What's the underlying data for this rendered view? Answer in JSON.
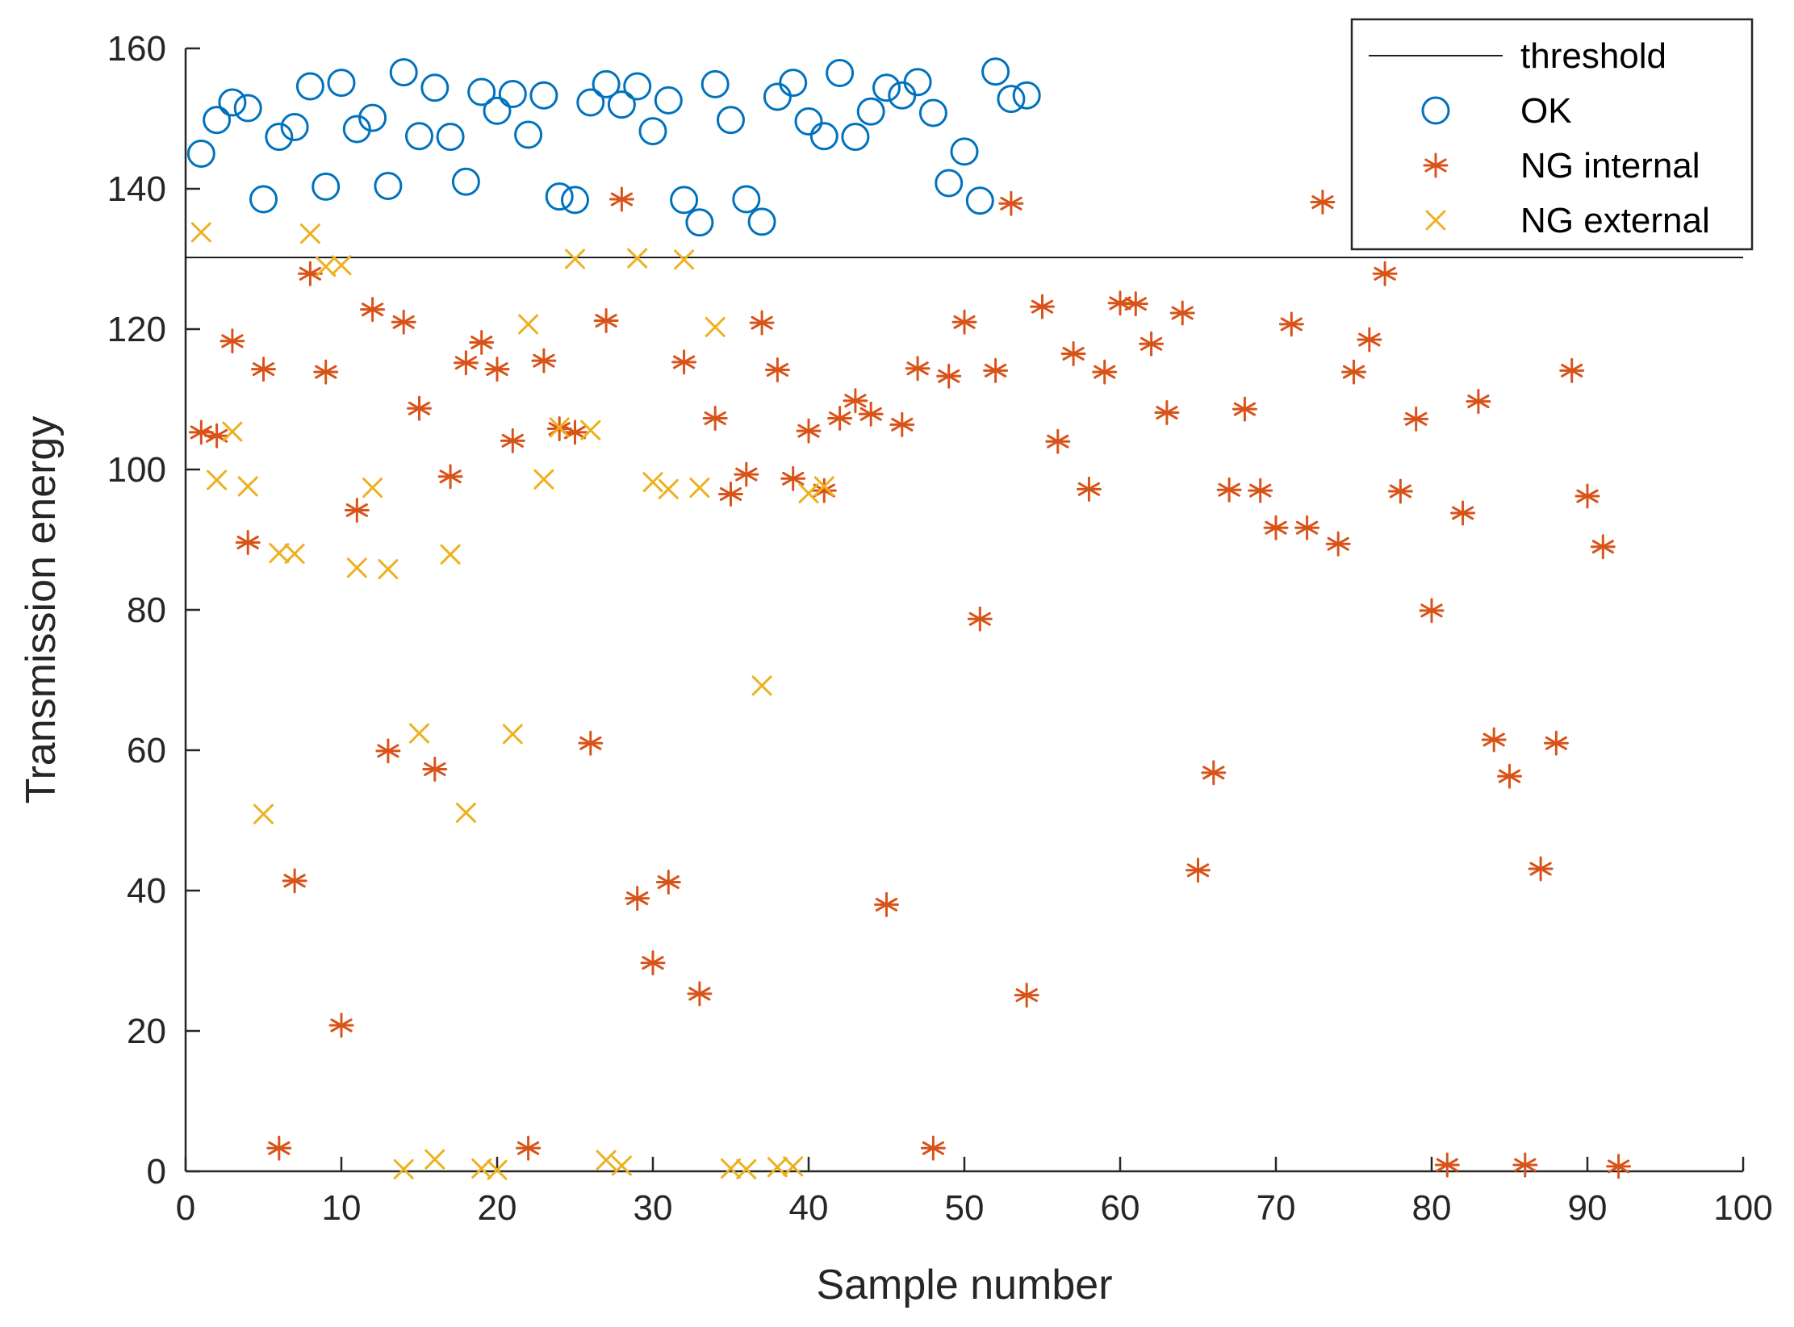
{
  "chart_data": {
    "type": "scatter",
    "title": "",
    "xlabel": "Sample number",
    "ylabel": "Transmission energy",
    "xlim": [
      0,
      100
    ],
    "ylim": [
      0,
      160
    ],
    "xticks": [
      0,
      10,
      20,
      30,
      40,
      50,
      60,
      70,
      80,
      90,
      100
    ],
    "yticks": [
      0,
      20,
      40,
      60,
      80,
      100,
      120,
      140,
      160
    ],
    "grid": false,
    "legend_position": "top-right",
    "threshold": {
      "name": "threshold",
      "value": 130.2,
      "color": "#000000"
    },
    "series": [
      {
        "name": "OK",
        "marker": "circle",
        "color": "#0072BD",
        "x": [
          1,
          2,
          3,
          4,
          5,
          6,
          7,
          8,
          9,
          10,
          11,
          12,
          13,
          14,
          15,
          16,
          17,
          18,
          19,
          20,
          21,
          22,
          23,
          24,
          25,
          26,
          27,
          28,
          29,
          30,
          31,
          32,
          33,
          34,
          35,
          36,
          37,
          38,
          39,
          40,
          41,
          42,
          43,
          44,
          45,
          46,
          47,
          48,
          49,
          50,
          51,
          52,
          53,
          54
        ],
        "y": [
          145,
          149.8,
          152.3,
          151.5,
          138.5,
          147.4,
          148.8,
          154.6,
          140.3,
          155.1,
          148.5,
          150.1,
          140.4,
          156.6,
          147.5,
          154.4,
          147.4,
          141,
          153.8,
          151.1,
          153.5,
          147.7,
          153.3,
          138.9,
          138.4,
          152.3,
          154.9,
          152,
          154.6,
          148.2,
          152.6,
          138.4,
          135.2,
          154.9,
          149.8,
          138.5,
          135.3,
          153.1,
          155.1,
          149.6,
          147.5,
          156.5,
          147.4,
          151,
          154.4,
          153.3,
          155.2,
          150.8,
          140.8,
          145.3,
          138.3,
          156.7,
          152.8,
          153.3
        ]
      },
      {
        "name": "NG internal",
        "marker": "asterisk",
        "color": "#D95319",
        "x": [
          1,
          2,
          3,
          4,
          5,
          6,
          7,
          8,
          9,
          10,
          11,
          12,
          13,
          14,
          15,
          16,
          17,
          18,
          19,
          20,
          21,
          22,
          23,
          24,
          25,
          26,
          27,
          28,
          29,
          30,
          31,
          32,
          33,
          34,
          35,
          36,
          37,
          38,
          39,
          40,
          41,
          42,
          43,
          44,
          45,
          46,
          47,
          48,
          49,
          50,
          51,
          52,
          53,
          54,
          55,
          56,
          57,
          58,
          59,
          60,
          61,
          62,
          63,
          64,
          65,
          66,
          67,
          68,
          69,
          70,
          71,
          72,
          73,
          74,
          75,
          76,
          77,
          78,
          79,
          80,
          81,
          82,
          83,
          84,
          85,
          86,
          87,
          88,
          89,
          90,
          91,
          92
        ],
        "y": [
          105.3,
          104.8,
          118.3,
          89.6,
          114.3,
          3.3,
          41.4,
          127.9,
          113.9,
          20.8,
          94.2,
          122.8,
          59.9,
          121,
          108.7,
          57.3,
          99,
          115.2,
          118.1,
          114.3,
          104.1,
          3.3,
          115.5,
          105.8,
          105.3,
          61,
          121.2,
          138.5,
          38.9,
          29.7,
          41.2,
          115.3,
          25.3,
          107.3,
          96.5,
          99.3,
          120.9,
          114.2,
          98.7,
          105.5,
          97,
          107.3,
          109.8,
          107.9,
          38,
          106.4,
          114.4,
          3.3,
          113.3,
          121,
          78.7,
          114.1,
          137.9,
          25.1,
          123.2,
          104,
          116.5,
          97.2,
          113.9,
          123.7,
          123.6,
          117.9,
          108.1,
          122.3,
          42.9,
          56.8,
          97.1,
          108.6,
          97,
          91.7,
          120.7,
          91.7,
          138.1,
          89.4,
          113.9,
          118.5,
          127.9,
          96.9,
          107.2,
          79.9,
          0.9,
          93.8,
          109.7,
          61.5,
          56.3,
          0.9,
          43.1,
          61,
          114.1,
          96.2,
          89,
          0.7
        ]
      },
      {
        "name": "NG external",
        "marker": "x",
        "color": "#EDB120",
        "x": [
          1,
          2,
          3,
          4,
          5,
          6,
          7,
          8,
          9,
          10,
          11,
          12,
          13,
          14,
          15,
          16,
          17,
          18,
          19,
          20,
          21,
          22,
          23,
          24,
          25,
          26,
          27,
          28,
          29,
          30,
          31,
          32,
          33,
          34,
          35,
          36,
          37,
          38,
          39,
          40,
          41
        ],
        "y": [
          133.8,
          98.5,
          105.4,
          97.6,
          50.9,
          88.1,
          88,
          133.6,
          128.9,
          129.1,
          86,
          97.4,
          85.8,
          0.3,
          62.4,
          1.7,
          87.9,
          51.1,
          0.4,
          0.2,
          62.3,
          120.7,
          98.6,
          106,
          130,
          105.6,
          1.6,
          0.8,
          130.1,
          98.2,
          97.2,
          129.9,
          97.4,
          120.3,
          0.4,
          0.3,
          69.2,
          0.6,
          0.7,
          96.6,
          97.6
        ]
      }
    ]
  }
}
